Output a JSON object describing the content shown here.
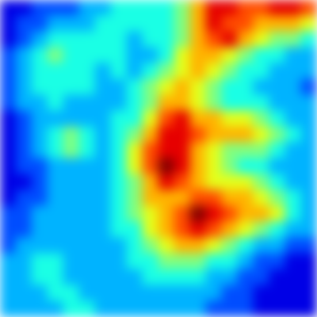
{
  "chart_data": {
    "type": "heatmap",
    "tick_labels": false,
    "cells": [
      [
        1,
        1,
        2,
        2,
        2,
        3,
        3,
        4,
        4,
        4,
        4,
        5,
        7,
        9,
        9,
        8,
        8,
        9,
        9,
        8
      ],
      [
        1,
        2,
        2,
        3,
        3,
        3,
        4,
        4,
        4,
        4,
        4,
        5,
        7,
        9,
        8,
        8,
        7,
        7,
        7,
        6
      ],
      [
        1,
        2,
        3,
        4,
        4,
        4,
        4,
        4,
        3,
        4,
        4,
        5,
        7,
        8,
        9,
        7,
        6,
        5,
        5,
        4
      ],
      [
        2,
        3,
        4,
        5,
        4,
        4,
        4,
        4,
        3,
        3,
        4,
        6,
        7,
        7,
        6,
        5,
        4,
        4,
        3,
        3
      ],
      [
        2,
        3,
        4,
        4,
        4,
        4,
        3,
        4,
        3,
        4,
        5,
        6,
        7,
        6,
        5,
        4,
        4,
        3,
        3,
        3
      ],
      [
        2,
        3,
        4,
        4,
        4,
        4,
        3,
        3,
        4,
        5,
        6,
        7,
        6,
        5,
        4,
        4,
        3,
        3,
        3,
        2
      ],
      [
        2,
        3,
        3,
        4,
        3,
        3,
        3,
        3,
        4,
        5,
        7,
        7,
        6,
        5,
        4,
        4,
        4,
        3,
        3,
        3
      ],
      [
        1,
        2,
        3,
        3,
        3,
        3,
        3,
        4,
        4,
        6,
        8,
        9,
        7,
        7,
        6,
        6,
        5,
        4,
        3,
        3
      ],
      [
        1,
        2,
        3,
        4,
        5,
        4,
        3,
        4,
        5,
        7,
        9,
        9,
        8,
        7,
        7,
        7,
        6,
        5,
        4,
        3
      ],
      [
        1,
        2,
        3,
        4,
        5,
        4,
        3,
        4,
        6,
        8,
        9,
        9,
        7,
        6,
        5,
        5,
        5,
        4,
        3,
        3
      ],
      [
        1,
        2,
        2,
        3,
        3,
        3,
        3,
        4,
        6,
        8,
        10,
        9,
        7,
        6,
        5,
        4,
        4,
        3,
        3,
        3
      ],
      [
        1,
        1,
        2,
        3,
        3,
        3,
        3,
        4,
        5,
        7,
        9,
        8,
        7,
        6,
        6,
        6,
        5,
        4,
        3,
        3
      ],
      [
        1,
        2,
        2,
        3,
        3,
        3,
        3,
        4,
        5,
        7,
        7,
        7,
        8,
        8,
        7,
        7,
        6,
        5,
        4,
        3
      ],
      [
        2,
        2,
        3,
        3,
        3,
        3,
        3,
        4,
        5,
        6,
        7,
        8,
        10,
        9,
        8,
        7,
        7,
        6,
        4,
        3
      ],
      [
        2,
        2,
        3,
        3,
        3,
        3,
        3,
        4,
        4,
        6,
        7,
        8,
        9,
        8,
        7,
        6,
        5,
        4,
        3,
        3
      ],
      [
        2,
        3,
        3,
        3,
        3,
        3,
        3,
        3,
        4,
        5,
        6,
        7,
        7,
        6,
        5,
        4,
        3,
        3,
        2,
        2
      ],
      [
        3,
        3,
        4,
        4,
        3,
        3,
        3,
        3,
        4,
        4,
        5,
        5,
        5,
        4,
        4,
        3,
        2,
        2,
        1,
        1
      ],
      [
        3,
        3,
        4,
        4,
        3,
        3,
        3,
        3,
        3,
        4,
        4,
        4,
        4,
        3,
        3,
        2,
        2,
        1,
        1,
        1
      ],
      [
        3,
        3,
        3,
        4,
        4,
        3,
        3,
        3,
        3,
        3,
        3,
        3,
        3,
        3,
        2,
        2,
        1,
        1,
        1,
        1
      ],
      [
        3,
        3,
        3,
        3,
        4,
        4,
        3,
        3,
        3,
        3,
        3,
        3,
        3,
        2,
        2,
        2,
        1,
        1,
        1,
        1
      ]
    ]
  }
}
